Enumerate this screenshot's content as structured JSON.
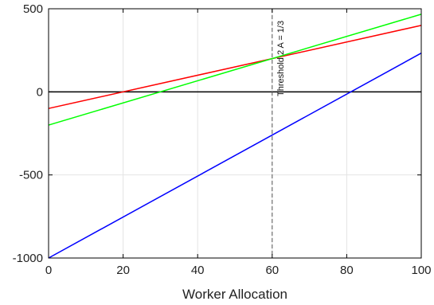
{
  "chart_data": {
    "type": "line",
    "title": "",
    "xlabel": "Worker Allocation",
    "ylabel": "",
    "xlim": [
      0,
      100
    ],
    "ylim": [
      -1000,
      500
    ],
    "grid": true,
    "x_ticks": [
      0,
      20,
      40,
      60,
      80,
      100
    ],
    "y_ticks": [
      -1000,
      -500,
      0,
      500
    ],
    "x_tick_labels": [
      "0",
      "20",
      "40",
      "60",
      "80",
      "100"
    ],
    "y_tick_labels": [
      "-1000",
      "-500",
      "0",
      "500"
    ],
    "series": [
      {
        "color": "#ff0000",
        "x": [
          0,
          100
        ],
        "y": [
          -100,
          400
        ]
      },
      {
        "color": "#00ff00",
        "x": [
          0,
          100
        ],
        "y": [
          -200,
          467
        ]
      },
      {
        "color": "#0000ff",
        "x": [
          0,
          100
        ],
        "y": [
          -1000,
          233
        ]
      }
    ],
    "reference_lines": [
      {
        "orientation": "horizontal",
        "value": 0,
        "color": "#000000",
        "style": "solid"
      },
      {
        "orientation": "vertical",
        "value": 60,
        "color": "#555555",
        "style": "dashed",
        "label": "Threshold 2 A = 1/3"
      }
    ]
  }
}
